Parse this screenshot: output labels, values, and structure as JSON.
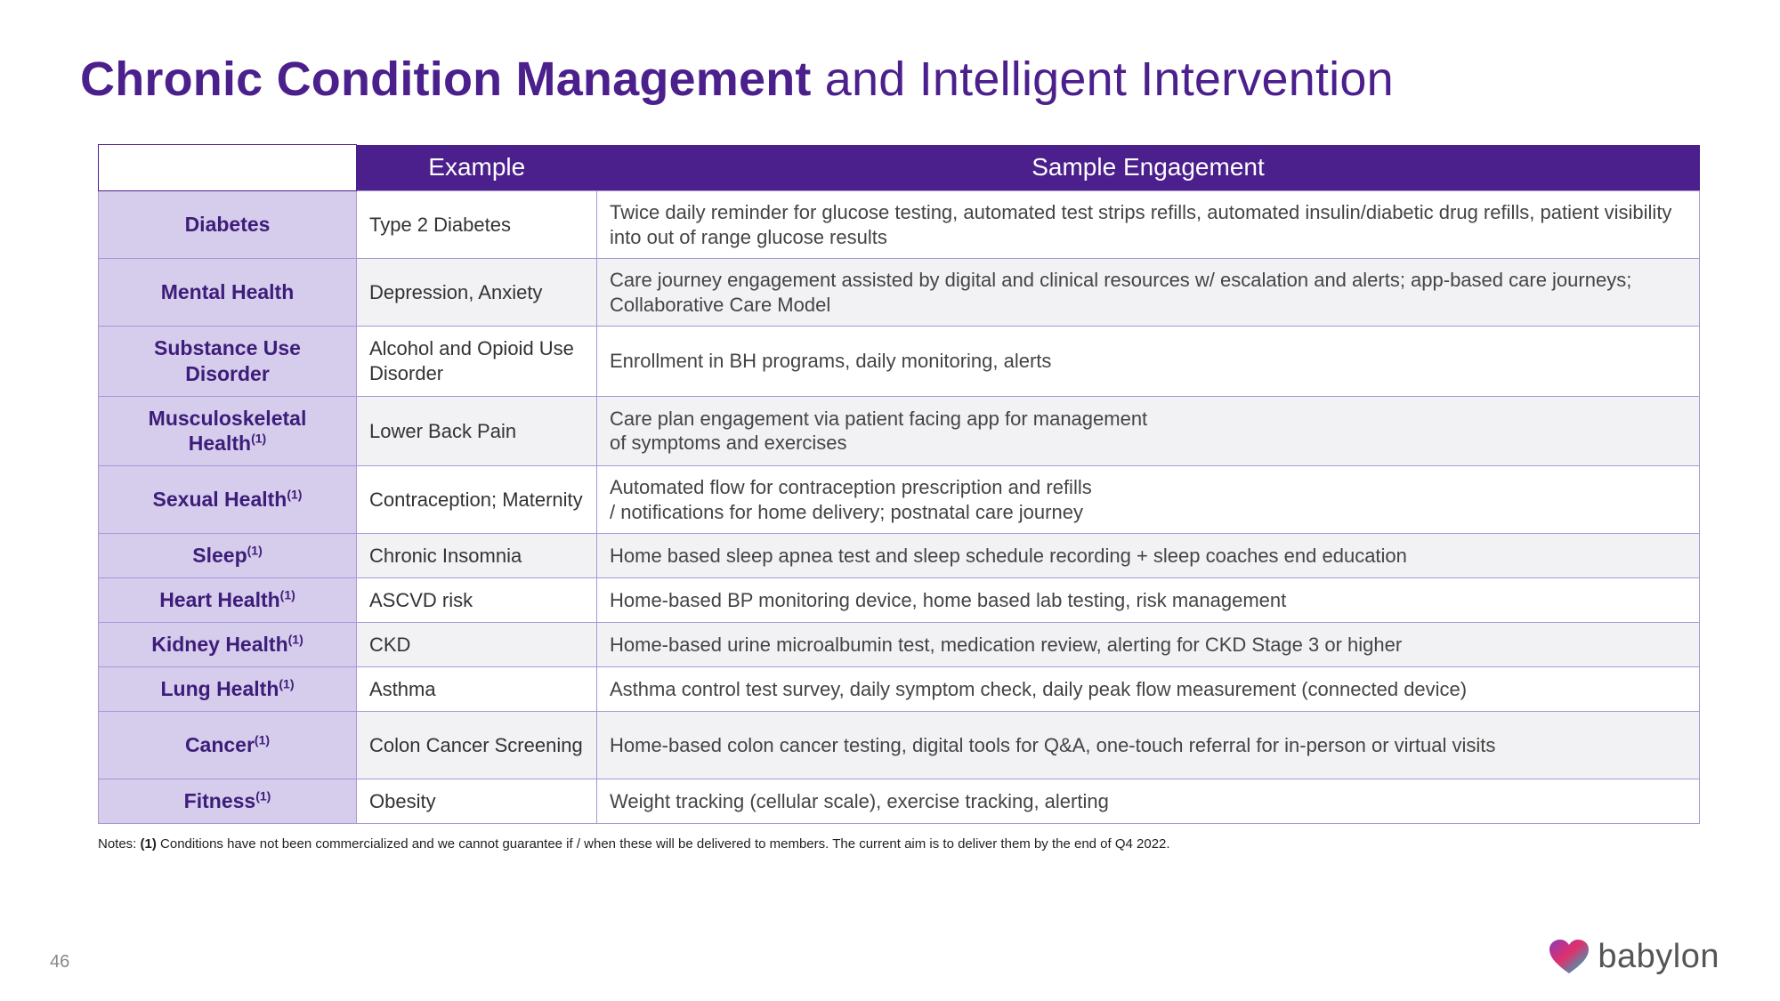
{
  "title": {
    "bold": "Chronic Condition Management",
    "rest": " and Intelligent Intervention"
  },
  "headers": {
    "example": "Example",
    "engagement": "Sample Engagement"
  },
  "rows": [
    {
      "condition": "Diabetes",
      "sup": "",
      "example": "Type 2 Diabetes",
      "engagement": "Twice daily reminder for glucose testing, automated test strips refills, automated insulin/diabetic drug refills, patient visibility into out of range glucose results",
      "height": "tall"
    },
    {
      "condition": "Mental Health",
      "sup": "",
      "example": "Depression, Anxiety",
      "engagement": "Care journey engagement assisted by digital and clinical resources w/ escalation and alerts; app-based care journeys; Collaborative Care Model",
      "height": "tall"
    },
    {
      "condition": "Substance Use Disorder",
      "sup": "",
      "example": "Alcohol and Opioid Use Disorder",
      "engagement": "Enrollment in BH programs, daily monitoring, alerts",
      "height": "tall"
    },
    {
      "condition": "Musculoskeletal Health",
      "sup": "(1)",
      "example": "Lower Back Pain",
      "engagement": "Care plan engagement via patient facing app for management\nof symptoms and exercises",
      "height": "tall"
    },
    {
      "condition": "Sexual Health",
      "sup": "(1)",
      "example": "Contraception; Maternity",
      "engagement": "Automated flow for contraception prescription and refills\n/ notifications for home delivery; postnatal care journey",
      "height": "tall"
    },
    {
      "condition": "Sleep",
      "sup": "(1)",
      "example": "Chronic Insomnia",
      "engagement": "Home based sleep apnea test and sleep schedule recording + sleep coaches end education",
      "height": "short"
    },
    {
      "condition": "Heart Health",
      "sup": "(1)",
      "example": "ASCVD risk",
      "engagement": "Home-based BP monitoring device, home based lab testing, risk management",
      "height": "short"
    },
    {
      "condition": "Kidney Health",
      "sup": "(1)",
      "example": "CKD",
      "engagement": "Home-based urine microalbumin test, medication review, alerting for CKD Stage 3 or higher",
      "height": "short"
    },
    {
      "condition": "Lung Health",
      "sup": "(1)",
      "example": "Asthma",
      "engagement": "Asthma control test survey, daily symptom check, daily peak flow measurement (connected device)",
      "height": "short"
    },
    {
      "condition": "Cancer",
      "sup": "(1)",
      "example": "Colon Cancer Screening",
      "engagement": "Home-based colon cancer testing, digital tools for Q&A, one-touch referral for in-person or virtual visits",
      "height": "tall"
    },
    {
      "condition": "Fitness",
      "sup": "(1)",
      "example": "Obesity",
      "engagement": "Weight tracking (cellular scale), exercise tracking, alerting",
      "height": "short"
    }
  ],
  "notes": {
    "prefix": "Notes: ",
    "marker": "(1)",
    "text": " Conditions have not been commercialized and we cannot guarantee if / when these will be delivered to members. The current aim is to deliver them by the end of Q4 2022."
  },
  "pageNumber": "46",
  "brand": "babylon",
  "colors": {
    "brand_purple": "#4b1f8c",
    "cell_lavender": "#d6ccec",
    "border": "#a998d6",
    "band_grey": "#f2f2f4",
    "text": "#3a3a3a"
  }
}
